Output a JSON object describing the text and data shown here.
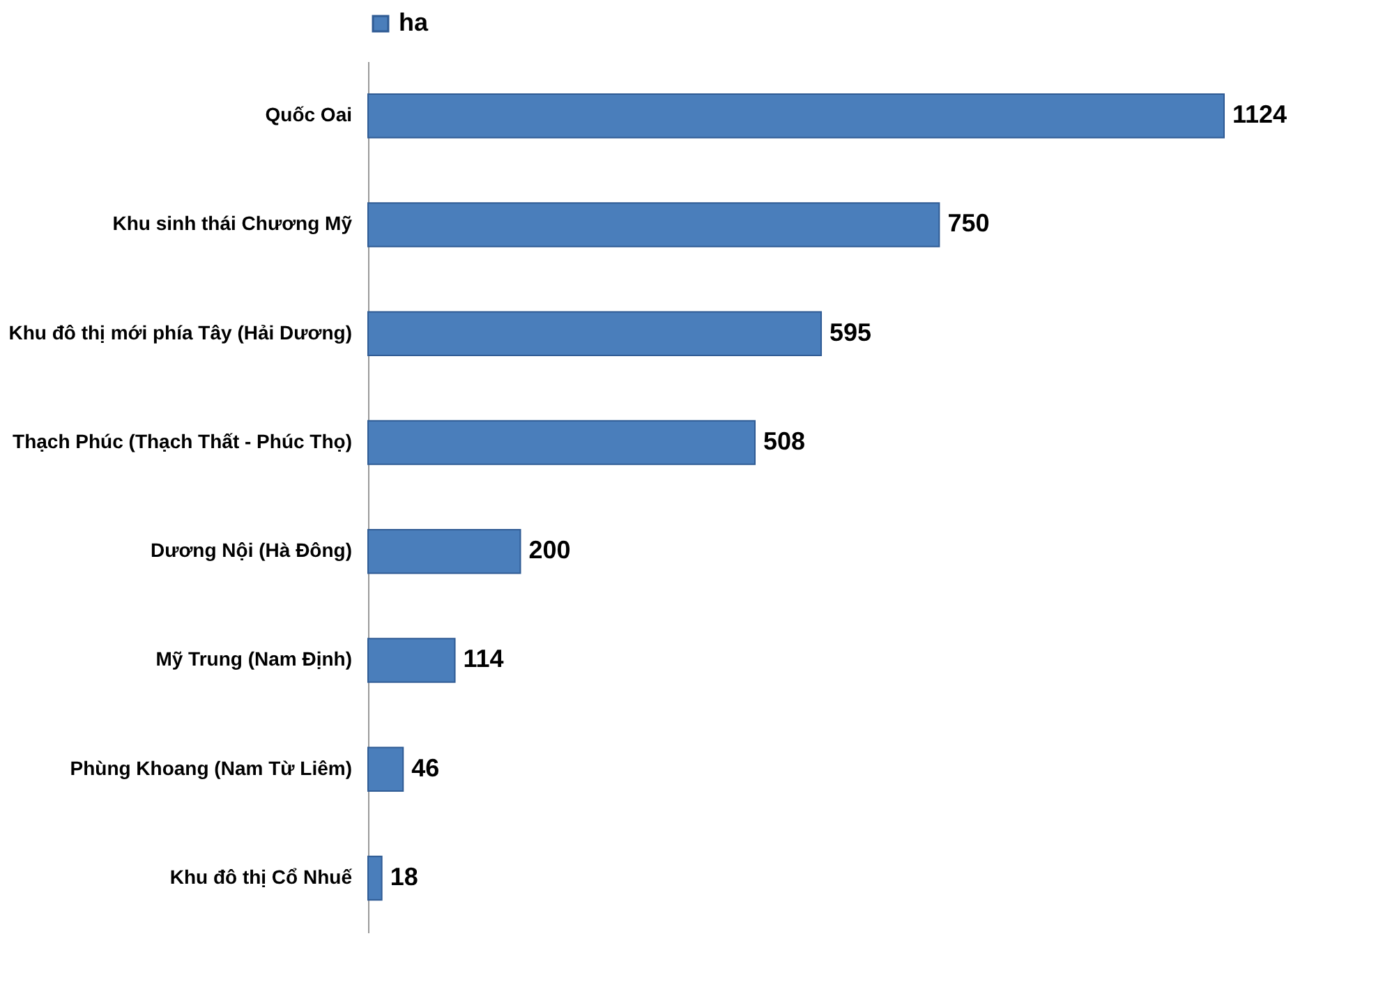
{
  "chart_data": {
    "type": "bar",
    "orientation": "horizontal",
    "categories": [
      "Quốc Oai",
      "Khu sinh thái Chương Mỹ",
      "Khu đô thị mới phía Tây (Hải Dương)",
      "Thạch Phúc (Thạch Thất - Phúc Thọ)",
      "Dương Nội (Hà Đông)",
      "Mỹ Trung (Nam Định)",
      "Phùng Khoang (Nam Từ Liêm)",
      "Khu đô thị Cổ Nhuế"
    ],
    "series": [
      {
        "name": "ha",
        "color": "#4a7ebb",
        "values": [
          1124,
          750,
          595,
          508,
          200,
          114,
          46,
          18
        ]
      }
    ],
    "data_labels": true,
    "legend": "top",
    "grid": false,
    "tick_labels": "y"
  }
}
